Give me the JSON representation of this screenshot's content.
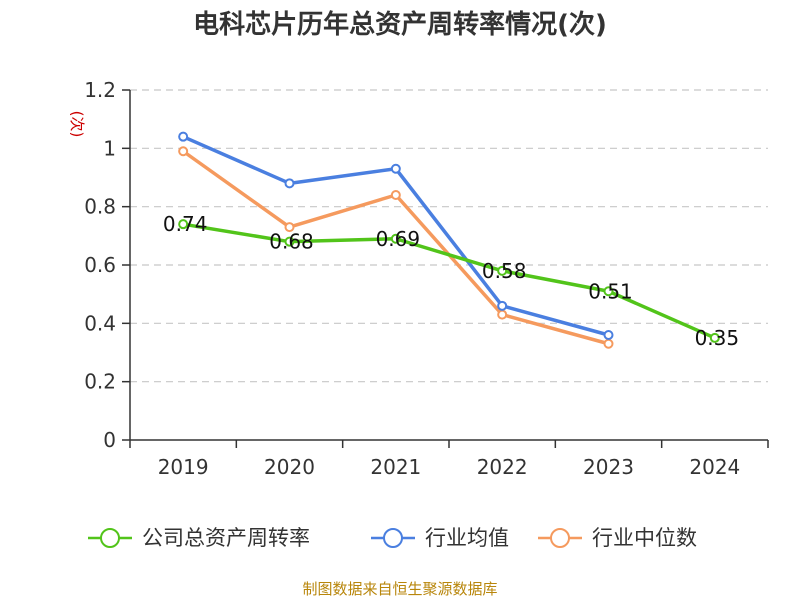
{
  "chart_data": {
    "type": "line",
    "title": "电科芯片历年总资产周转率情况(次)",
    "ylabel": "(次)",
    "categories": [
      "2019",
      "2020",
      "2021",
      "2022",
      "2023",
      "2024"
    ],
    "ylim": [
      0,
      1.2
    ],
    "yticks": [
      "0",
      "0.2",
      "0.4",
      "0.6",
      "0.8",
      "1",
      "1.2"
    ],
    "grid": true,
    "legend_position": "bottom",
    "series": [
      {
        "name": "公司总资产周转率",
        "color": "#52c41a",
        "values": [
          0.74,
          0.68,
          0.69,
          0.58,
          0.51,
          0.35
        ],
        "labels": [
          "0.74",
          "0.68",
          "0.69",
          "0.58",
          "0.51",
          "0.35"
        ]
      },
      {
        "name": "行业均值",
        "color": "#4a7fe0",
        "values": [
          1.04,
          0.88,
          0.93,
          0.46,
          0.36,
          null
        ]
      },
      {
        "name": "行业中位数",
        "color": "#f59a5e",
        "values": [
          0.99,
          0.73,
          0.84,
          0.43,
          0.33,
          null
        ]
      }
    ]
  },
  "source": "制图数据来自恒生聚源数据库"
}
